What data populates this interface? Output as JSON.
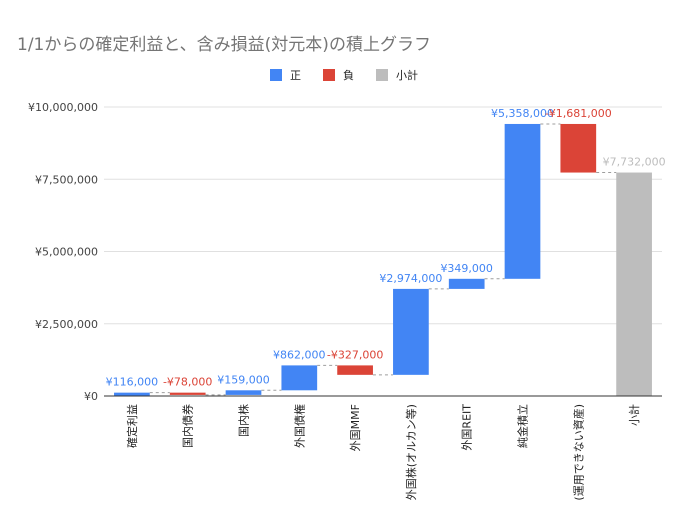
{
  "chart_data": {
    "type": "waterfall",
    "title": "1/1からの確定利益と、含み損益(対元本)の積上グラフ",
    "legend": {
      "position": "top",
      "items": [
        {
          "key": "positive",
          "label": "正"
        },
        {
          "key": "negative",
          "label": "負"
        },
        {
          "key": "subtotal",
          "label": "小計"
        }
      ]
    },
    "colors": {
      "positive": "#4285f4",
      "negative": "#db4437",
      "subtotal": "#bdbdbd",
      "positive_label": "#4285f4",
      "negative_label": "#db4437",
      "subtotal_label": "#bdbdbd"
    },
    "ylim": [
      0,
      10000000
    ],
    "yticks": [
      {
        "value": 0,
        "label": "¥0"
      },
      {
        "value": 2500000,
        "label": "¥2,500,000"
      },
      {
        "value": 5000000,
        "label": "¥5,000,000"
      },
      {
        "value": 7500000,
        "label": "¥7,500,000"
      },
      {
        "value": 10000000,
        "label": "¥10,000,000"
      }
    ],
    "categories": [
      "確定利益",
      "国内債券",
      "国内株",
      "外国債権",
      "外国MMF",
      "外国株(オルカン等)",
      "外国REIT",
      "純金積立",
      "(運用できない資産)",
      "小計"
    ],
    "steps": [
      {
        "category": "確定利益",
        "value": 116000,
        "label": "¥116,000",
        "kind": "positive"
      },
      {
        "category": "国内債券",
        "value": -78000,
        "label": "-¥78,000",
        "kind": "negative"
      },
      {
        "category": "国内株",
        "value": 159000,
        "label": "¥159,000",
        "kind": "positive"
      },
      {
        "category": "外国債権",
        "value": 862000,
        "label": "¥862,000",
        "kind": "positive"
      },
      {
        "category": "外国MMF",
        "value": -327000,
        "label": "-¥327,000",
        "kind": "negative"
      },
      {
        "category": "外国株(オルカン等)",
        "value": 2974000,
        "label": "¥2,974,000",
        "kind": "positive"
      },
      {
        "category": "外国REIT",
        "value": 349000,
        "label": "¥349,000",
        "kind": "positive"
      },
      {
        "category": "純金積立",
        "value": 5358000,
        "label": "¥5,358,000",
        "kind": "positive"
      },
      {
        "category": "(運用できない資産)",
        "value": -1681000,
        "label": "-¥1,681,000",
        "kind": "negative"
      },
      {
        "category": "小計",
        "value": 7732000,
        "label": "¥7,732,000",
        "kind": "subtotal"
      }
    ]
  }
}
